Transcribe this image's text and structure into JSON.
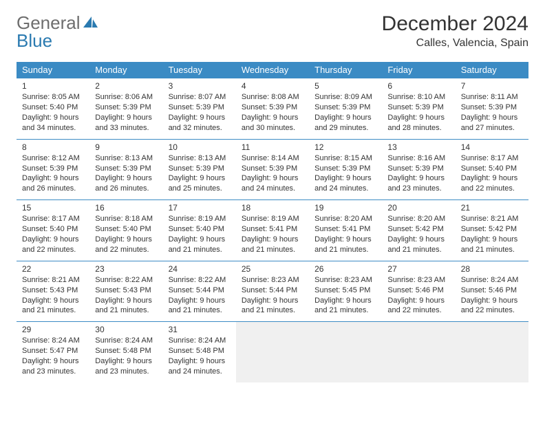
{
  "logo": {
    "part1": "General",
    "part2": "Blue"
  },
  "header": {
    "month_title": "December 2024",
    "location": "Calles, Valencia, Spain"
  },
  "colors": {
    "header_bg": "#3b8bc4",
    "header_text": "#ffffff",
    "border": "#3b8bc4",
    "empty_bg": "#f0f0f0",
    "logo_gray": "#6e6e6e",
    "logo_blue": "#2a7ab0"
  },
  "day_headers": [
    "Sunday",
    "Monday",
    "Tuesday",
    "Wednesday",
    "Thursday",
    "Friday",
    "Saturday"
  ],
  "weeks": [
    [
      {
        "n": "1",
        "sr": "Sunrise: 8:05 AM",
        "ss": "Sunset: 5:40 PM",
        "d1": "Daylight: 9 hours",
        "d2": "and 34 minutes."
      },
      {
        "n": "2",
        "sr": "Sunrise: 8:06 AM",
        "ss": "Sunset: 5:39 PM",
        "d1": "Daylight: 9 hours",
        "d2": "and 33 minutes."
      },
      {
        "n": "3",
        "sr": "Sunrise: 8:07 AM",
        "ss": "Sunset: 5:39 PM",
        "d1": "Daylight: 9 hours",
        "d2": "and 32 minutes."
      },
      {
        "n": "4",
        "sr": "Sunrise: 8:08 AM",
        "ss": "Sunset: 5:39 PM",
        "d1": "Daylight: 9 hours",
        "d2": "and 30 minutes."
      },
      {
        "n": "5",
        "sr": "Sunrise: 8:09 AM",
        "ss": "Sunset: 5:39 PM",
        "d1": "Daylight: 9 hours",
        "d2": "and 29 minutes."
      },
      {
        "n": "6",
        "sr": "Sunrise: 8:10 AM",
        "ss": "Sunset: 5:39 PM",
        "d1": "Daylight: 9 hours",
        "d2": "and 28 minutes."
      },
      {
        "n": "7",
        "sr": "Sunrise: 8:11 AM",
        "ss": "Sunset: 5:39 PM",
        "d1": "Daylight: 9 hours",
        "d2": "and 27 minutes."
      }
    ],
    [
      {
        "n": "8",
        "sr": "Sunrise: 8:12 AM",
        "ss": "Sunset: 5:39 PM",
        "d1": "Daylight: 9 hours",
        "d2": "and 26 minutes."
      },
      {
        "n": "9",
        "sr": "Sunrise: 8:13 AM",
        "ss": "Sunset: 5:39 PM",
        "d1": "Daylight: 9 hours",
        "d2": "and 26 minutes."
      },
      {
        "n": "10",
        "sr": "Sunrise: 8:13 AM",
        "ss": "Sunset: 5:39 PM",
        "d1": "Daylight: 9 hours",
        "d2": "and 25 minutes."
      },
      {
        "n": "11",
        "sr": "Sunrise: 8:14 AM",
        "ss": "Sunset: 5:39 PM",
        "d1": "Daylight: 9 hours",
        "d2": "and 24 minutes."
      },
      {
        "n": "12",
        "sr": "Sunrise: 8:15 AM",
        "ss": "Sunset: 5:39 PM",
        "d1": "Daylight: 9 hours",
        "d2": "and 24 minutes."
      },
      {
        "n": "13",
        "sr": "Sunrise: 8:16 AM",
        "ss": "Sunset: 5:39 PM",
        "d1": "Daylight: 9 hours",
        "d2": "and 23 minutes."
      },
      {
        "n": "14",
        "sr": "Sunrise: 8:17 AM",
        "ss": "Sunset: 5:40 PM",
        "d1": "Daylight: 9 hours",
        "d2": "and 22 minutes."
      }
    ],
    [
      {
        "n": "15",
        "sr": "Sunrise: 8:17 AM",
        "ss": "Sunset: 5:40 PM",
        "d1": "Daylight: 9 hours",
        "d2": "and 22 minutes."
      },
      {
        "n": "16",
        "sr": "Sunrise: 8:18 AM",
        "ss": "Sunset: 5:40 PM",
        "d1": "Daylight: 9 hours",
        "d2": "and 22 minutes."
      },
      {
        "n": "17",
        "sr": "Sunrise: 8:19 AM",
        "ss": "Sunset: 5:40 PM",
        "d1": "Daylight: 9 hours",
        "d2": "and 21 minutes."
      },
      {
        "n": "18",
        "sr": "Sunrise: 8:19 AM",
        "ss": "Sunset: 5:41 PM",
        "d1": "Daylight: 9 hours",
        "d2": "and 21 minutes."
      },
      {
        "n": "19",
        "sr": "Sunrise: 8:20 AM",
        "ss": "Sunset: 5:41 PM",
        "d1": "Daylight: 9 hours",
        "d2": "and 21 minutes."
      },
      {
        "n": "20",
        "sr": "Sunrise: 8:20 AM",
        "ss": "Sunset: 5:42 PM",
        "d1": "Daylight: 9 hours",
        "d2": "and 21 minutes."
      },
      {
        "n": "21",
        "sr": "Sunrise: 8:21 AM",
        "ss": "Sunset: 5:42 PM",
        "d1": "Daylight: 9 hours",
        "d2": "and 21 minutes."
      }
    ],
    [
      {
        "n": "22",
        "sr": "Sunrise: 8:21 AM",
        "ss": "Sunset: 5:43 PM",
        "d1": "Daylight: 9 hours",
        "d2": "and 21 minutes."
      },
      {
        "n": "23",
        "sr": "Sunrise: 8:22 AM",
        "ss": "Sunset: 5:43 PM",
        "d1": "Daylight: 9 hours",
        "d2": "and 21 minutes."
      },
      {
        "n": "24",
        "sr": "Sunrise: 8:22 AM",
        "ss": "Sunset: 5:44 PM",
        "d1": "Daylight: 9 hours",
        "d2": "and 21 minutes."
      },
      {
        "n": "25",
        "sr": "Sunrise: 8:23 AM",
        "ss": "Sunset: 5:44 PM",
        "d1": "Daylight: 9 hours",
        "d2": "and 21 minutes."
      },
      {
        "n": "26",
        "sr": "Sunrise: 8:23 AM",
        "ss": "Sunset: 5:45 PM",
        "d1": "Daylight: 9 hours",
        "d2": "and 21 minutes."
      },
      {
        "n": "27",
        "sr": "Sunrise: 8:23 AM",
        "ss": "Sunset: 5:46 PM",
        "d1": "Daylight: 9 hours",
        "d2": "and 22 minutes."
      },
      {
        "n": "28",
        "sr": "Sunrise: 8:24 AM",
        "ss": "Sunset: 5:46 PM",
        "d1": "Daylight: 9 hours",
        "d2": "and 22 minutes."
      }
    ],
    [
      {
        "n": "29",
        "sr": "Sunrise: 8:24 AM",
        "ss": "Sunset: 5:47 PM",
        "d1": "Daylight: 9 hours",
        "d2": "and 23 minutes."
      },
      {
        "n": "30",
        "sr": "Sunrise: 8:24 AM",
        "ss": "Sunset: 5:48 PM",
        "d1": "Daylight: 9 hours",
        "d2": "and 23 minutes."
      },
      {
        "n": "31",
        "sr": "Sunrise: 8:24 AM",
        "ss": "Sunset: 5:48 PM",
        "d1": "Daylight: 9 hours",
        "d2": "and 24 minutes."
      },
      null,
      null,
      null,
      null
    ]
  ]
}
